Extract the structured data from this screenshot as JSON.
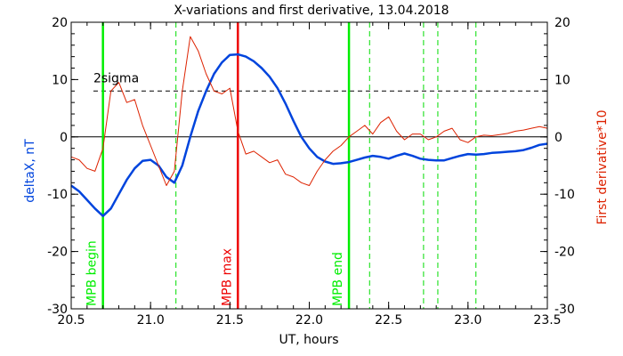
{
  "chart_data": {
    "type": "line",
    "title": "X-variations and first derivative, 13.04.2018",
    "xlabel": "UT, hours",
    "ylabel_left": "deltaX, nT",
    "ylabel_right": "First derivative*10",
    "xlim": [
      20.5,
      23.5
    ],
    "ylim": [
      -30,
      20
    ],
    "xticks": [
      20.5,
      21.0,
      21.5,
      22.0,
      22.5,
      23.0,
      23.5
    ],
    "xtick_labels": [
      "20.5",
      "21.0",
      "21.5",
      "22.0",
      "22.5",
      "23.0",
      "23.5"
    ],
    "yticks": [
      -30,
      -20,
      -10,
      0,
      10,
      20
    ],
    "ytick_labels": [
      "-30",
      "-20",
      "-10",
      "0",
      "10",
      "20"
    ],
    "colors": {
      "deltax": "#0044dd",
      "derivative": "#dd2200",
      "mpb_begin": "#00ee00",
      "mpb_max": "#ee0000",
      "mpb_end": "#00ee00",
      "dashed_marker": "#00dd00",
      "sigma_line": "#000000",
      "zero_line": "#000000"
    },
    "zero_line": 0,
    "sigma_line": {
      "label": "2sigma",
      "value": 8
    },
    "markers_solid": [
      {
        "label": "MPB begin",
        "x": 20.7,
        "color_key": "mpb_begin"
      },
      {
        "label": "MPB max",
        "x": 21.55,
        "color_key": "mpb_max"
      },
      {
        "label": "MPB end",
        "x": 22.25,
        "color_key": "mpb_end"
      }
    ],
    "markers_dashed": [
      21.16,
      22.38,
      22.72,
      22.81,
      23.05
    ],
    "series": [
      {
        "name": "deltaX",
        "x": [
          20.5,
          20.55,
          20.6,
          20.65,
          20.7,
          20.75,
          20.8,
          20.85,
          20.9,
          20.95,
          21.0,
          21.05,
          21.1,
          21.15,
          21.2,
          21.25,
          21.3,
          21.35,
          21.4,
          21.45,
          21.5,
          21.55,
          21.6,
          21.65,
          21.7,
          21.75,
          21.8,
          21.85,
          21.9,
          21.95,
          22.0,
          22.05,
          22.1,
          22.15,
          22.2,
          22.25,
          22.3,
          22.35,
          22.4,
          22.45,
          22.5,
          22.55,
          22.6,
          22.65,
          22.7,
          22.75,
          22.8,
          22.85,
          22.9,
          22.95,
          23.0,
          23.05,
          23.1,
          23.15,
          23.2,
          23.25,
          23.3,
          23.35,
          23.4,
          23.45,
          23.5
        ],
        "values": [
          -8.5,
          -9.5,
          -11.0,
          -12.5,
          -13.8,
          -12.5,
          -10.0,
          -7.5,
          -5.5,
          -4.2,
          -4.0,
          -5.0,
          -7.0,
          -8.0,
          -5.0,
          0.0,
          4.5,
          8.0,
          11.0,
          13.0,
          14.3,
          14.4,
          14.0,
          13.2,
          12.0,
          10.5,
          8.5,
          5.8,
          2.8,
          0.0,
          -2.0,
          -3.5,
          -4.3,
          -4.7,
          -4.6,
          -4.4,
          -4.0,
          -3.6,
          -3.3,
          -3.5,
          -3.8,
          -3.3,
          -2.9,
          -3.3,
          -3.8,
          -4.0,
          -4.1,
          -4.1,
          -3.7,
          -3.3,
          -3.0,
          -3.1,
          -3.0,
          -2.8,
          -2.7,
          -2.6,
          -2.5,
          -2.3,
          -1.9,
          -1.4,
          -1.2
        ]
      },
      {
        "name": "First derivative*10",
        "x": [
          20.5,
          20.55,
          20.6,
          20.65,
          20.7,
          20.75,
          20.8,
          20.85,
          20.9,
          20.95,
          21.0,
          21.05,
          21.1,
          21.15,
          21.2,
          21.25,
          21.3,
          21.35,
          21.4,
          21.45,
          21.5,
          21.55,
          21.6,
          21.65,
          21.7,
          21.75,
          21.8,
          21.85,
          21.9,
          21.95,
          22.0,
          22.05,
          22.1,
          22.15,
          22.2,
          22.25,
          22.3,
          22.35,
          22.4,
          22.45,
          22.5,
          22.55,
          22.6,
          22.65,
          22.7,
          22.75,
          22.8,
          22.85,
          22.9,
          22.95,
          23.0,
          23.05,
          23.1,
          23.15,
          23.2,
          23.25,
          23.3,
          23.35,
          23.4,
          23.45,
          23.5
        ],
        "values": [
          -3.5,
          -4.0,
          -5.5,
          -6.0,
          -2.0,
          8.0,
          9.5,
          6.0,
          6.5,
          2.0,
          -1.5,
          -5.0,
          -8.5,
          -6.0,
          8.0,
          17.5,
          15.0,
          11.0,
          8.0,
          7.5,
          8.5,
          1.0,
          -3.0,
          -2.5,
          -3.5,
          -4.5,
          -4.0,
          -6.5,
          -7.0,
          -8.0,
          -8.5,
          -6.0,
          -4.0,
          -2.5,
          -1.5,
          0.0,
          1.0,
          2.0,
          0.5,
          2.5,
          3.5,
          1.0,
          -0.5,
          0.5,
          0.5,
          -0.5,
          0.0,
          1.0,
          1.5,
          -0.5,
          -1.0,
          0.0,
          0.3,
          0.2,
          0.4,
          0.6,
          1.0,
          1.2,
          1.5,
          1.8,
          1.5
        ]
      }
    ]
  }
}
